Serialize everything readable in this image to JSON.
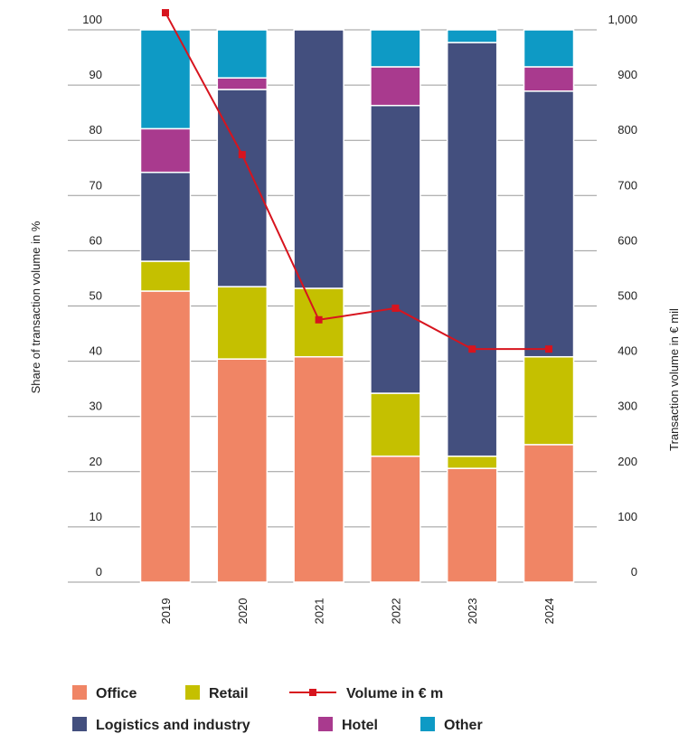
{
  "chart_data": {
    "type": "bar",
    "categories": [
      "2019",
      "2020",
      "2021",
      "2022",
      "2023",
      "2024"
    ],
    "series": [
      {
        "name": "Office",
        "color": "#f08565",
        "values": [
          52.7,
          40.4,
          40.8,
          22.8,
          20.6,
          24.9
        ]
      },
      {
        "name": "Retail",
        "color": "#c5c000",
        "values": [
          5.4,
          13.1,
          12.4,
          11.4,
          2.2,
          15.9
        ]
      },
      {
        "name": "Logistics and industry",
        "color": "#434f7e",
        "values": [
          16.1,
          35.7,
          46.8,
          52.1,
          74.9,
          48.1
        ]
      },
      {
        "name": "Hotel",
        "color": "#a93a8e",
        "values": [
          7.9,
          2.1,
          0,
          7.0,
          0,
          4.4
        ]
      },
      {
        "name": "Other",
        "color": "#0e9ac5",
        "values": [
          17.9,
          8.7,
          0,
          6.7,
          2.3,
          6.7
        ]
      },
      {
        "name": "Volume in € m",
        "color": "#d7141e",
        "type": "line",
        "axis": "y2",
        "values": [
          1031,
          774,
          475,
          496,
          422,
          422
        ]
      }
    ],
    "y_label": "Share of transaction volume in %",
    "y2_label": "Transaction volume in € mil",
    "ylim": [
      0,
      100
    ],
    "yticks": [
      0,
      10,
      20,
      30,
      40,
      50,
      60,
      70,
      80,
      90,
      100
    ],
    "y2lim": [
      0,
      1000
    ],
    "y2ticks": [
      0,
      100,
      200,
      300,
      400,
      500,
      600,
      700,
      800,
      900,
      {
        "value": 1000,
        "label": "1,000"
      }
    ],
    "grid": true,
    "legend": "bottom"
  }
}
